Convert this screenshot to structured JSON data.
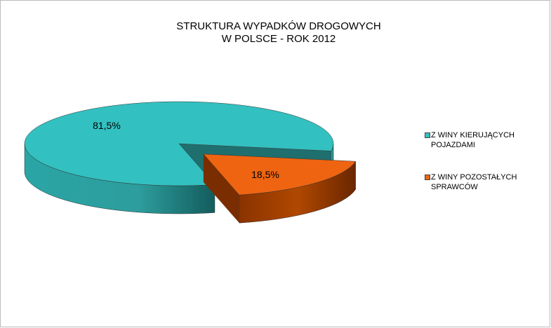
{
  "chart_data": {
    "type": "pie3d",
    "title": [
      "STRUKTURA WYPADKÓW DROGOWYCH",
      "W POLSCE - ROK 2012"
    ],
    "categories": [
      "Z WINY KIERUJĄCYCH POJAZDAMI",
      "Z WINY POZOSTAŁYCH SPRAWCÓW"
    ],
    "values": [
      81.5,
      18.5
    ],
    "value_labels": [
      "81,5%",
      "18,5%"
    ],
    "colors": [
      "#33c0c0",
      "#ee6411"
    ],
    "legend": "right"
  }
}
